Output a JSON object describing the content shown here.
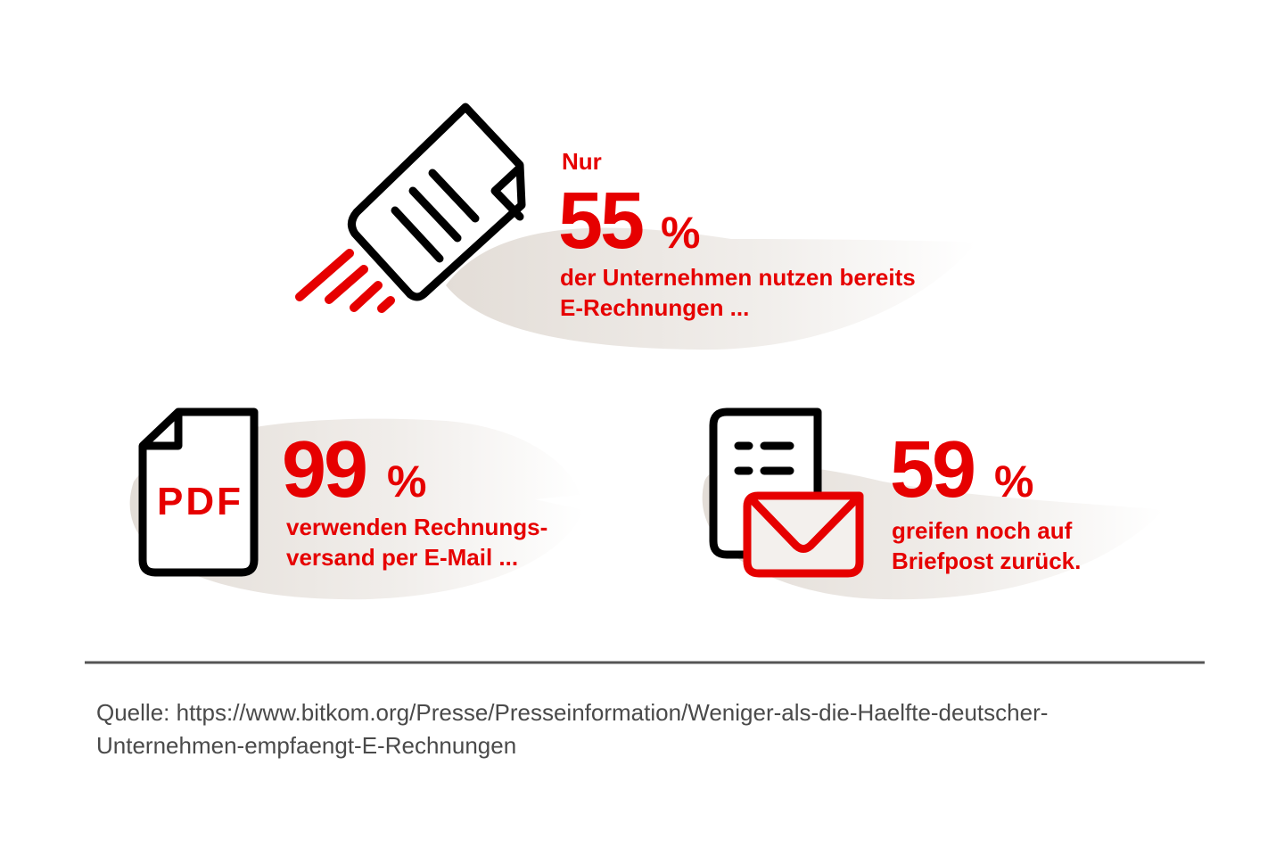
{
  "colors": {
    "accent": "#e60000",
    "icon_stroke": "#000000",
    "blob": "#e7e2dd",
    "divider": "#555555",
    "source_text": "#4a4a4a"
  },
  "stat1": {
    "icon": "flying-document-icon",
    "prefix": "Nur",
    "value": "55",
    "unit": "%",
    "line1": "der Unternehmen nutzen bereits",
    "line2": "E-Rechnungen ..."
  },
  "stat2": {
    "icon": "pdf-document-icon",
    "icon_label": "PDF",
    "value": "99",
    "unit": "%",
    "line1": "verwenden Rechnungs-",
    "line2": "versand per E-Mail ..."
  },
  "stat3": {
    "icon": "letter-envelope-icon",
    "value": "59",
    "unit": "%",
    "line1": "greifen noch auf",
    "line2": "Briefpost zurück."
  },
  "source": {
    "line1": "Quelle: https://www.bitkom.org/Presse/Presseinformation/Weniger-als-die-Haelfte-deutscher-",
    "line2": "Unternehmen-empfaengt-E-Rechnungen"
  }
}
